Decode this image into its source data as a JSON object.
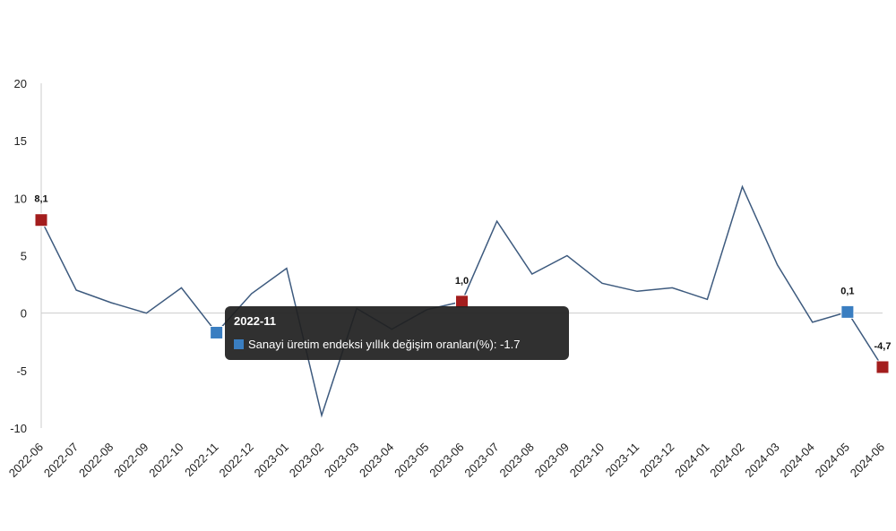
{
  "chart_data": {
    "type": "line",
    "title": "",
    "xlabel": "",
    "ylabel": "",
    "categories": [
      "2022-06",
      "2022-07",
      "2022-08",
      "2022-09",
      "2022-10",
      "2022-11",
      "2022-12",
      "2023-01",
      "2023-02",
      "2023-03",
      "2023-04",
      "2023-05",
      "2023-06",
      "2023-07",
      "2023-08",
      "2023-09",
      "2023-10",
      "2023-11",
      "2023-12",
      "2024-01",
      "2024-02",
      "2024-03",
      "2024-04",
      "2024-05",
      "2024-06"
    ],
    "series": [
      {
        "name": "Sanayi üretim endeksi yıllık değişim oranları(%)",
        "color": "#3d5a7e",
        "values": [
          8.1,
          2.0,
          0.9,
          0.0,
          2.2,
          -1.7,
          1.7,
          3.9,
          -8.9,
          0.4,
          -1.4,
          0.3,
          1.0,
          8.0,
          3.4,
          5.0,
          2.6,
          1.9,
          2.2,
          1.2,
          11.0,
          4.2,
          -0.8,
          0.1,
          -4.7
        ]
      }
    ],
    "ylim": [
      -10,
      20
    ],
    "yticks": [
      20,
      15,
      10,
      5,
      0,
      -5,
      -10
    ],
    "grid": false,
    "zero_line": true,
    "highlighted_points": [
      {
        "category": "2022-06",
        "label": "8,1",
        "color": "#a31d1d"
      },
      {
        "category": "2022-11",
        "label": "",
        "color": "#3a7ec1"
      },
      {
        "category": "2023-06",
        "label": "1,0",
        "color": "#a31d1d"
      },
      {
        "category": "2024-05",
        "label": "0,1",
        "color": "#3a7ec1"
      },
      {
        "category": "2024-06",
        "label": "-4,7",
        "color": "#a31d1d"
      }
    ],
    "tooltip": {
      "category": "2022-11",
      "title": "2022-11",
      "text": "Sanayi üretim endeksi yıllık değişim oranları(%): -1.7",
      "swatch_color": "#3a7ec1"
    }
  }
}
